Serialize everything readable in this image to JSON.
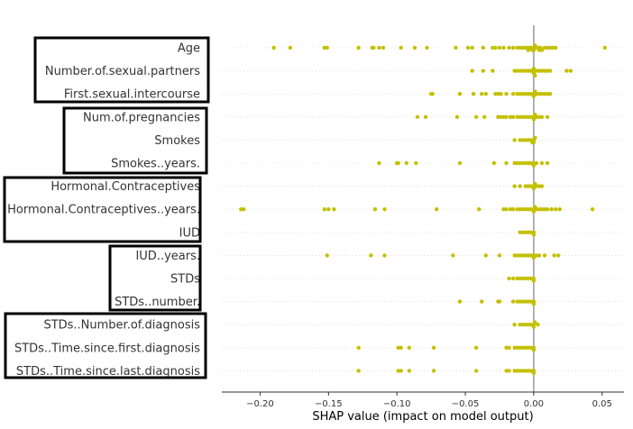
{
  "chart_data": {
    "type": "scatter",
    "subtype": "shap-beeswarm",
    "xlabel": "SHAP value (impact on model output)",
    "xlim": [
      -0.228,
      0.066
    ],
    "xticks": [
      -0.2,
      -0.15,
      -0.1,
      -0.05,
      0.0,
      0.05
    ],
    "xtick_labels": [
      "−0.20",
      "−0.15",
      "−0.10",
      "−0.05",
      "0.00",
      "0.05"
    ],
    "point_color": "#c4c000",
    "zero_line_color": "#999999",
    "features": [
      {
        "name": "Age",
        "values": [
          -0.19,
          -0.178,
          -0.153,
          -0.151,
          -0.128,
          -0.118,
          -0.117,
          -0.113,
          -0.11,
          -0.097,
          -0.087,
          -0.078,
          -0.057,
          -0.048,
          -0.045,
          -0.037,
          -0.03,
          -0.028,
          -0.025,
          -0.022,
          -0.018,
          -0.015,
          -0.012,
          -0.01,
          -0.008,
          -0.006,
          -0.005,
          -0.004,
          -0.003,
          -0.002,
          -0.001,
          0.0,
          0.0,
          0.001,
          0.002,
          0.003,
          0.004,
          0.005,
          0.006,
          0.008,
          0.01,
          0.012,
          0.014,
          0.016,
          0.052
        ]
      },
      {
        "name": "Number.of.sexual.partners",
        "values": [
          -0.045,
          -0.037,
          -0.03,
          -0.014,
          -0.012,
          -0.01,
          -0.008,
          -0.006,
          -0.004,
          -0.002,
          0.0,
          0.0,
          0.0,
          0.001,
          0.002,
          0.004,
          0.006,
          0.008,
          0.01,
          0.012,
          0.024,
          0.027
        ]
      },
      {
        "name": "First.sexual.intercourse",
        "values": [
          -0.075,
          -0.074,
          -0.054,
          -0.044,
          -0.038,
          -0.035,
          -0.028,
          -0.026,
          -0.024,
          -0.02,
          -0.015,
          -0.012,
          -0.01,
          -0.008,
          -0.006,
          -0.004,
          -0.002,
          0.0,
          0.0,
          0.001,
          0.002,
          0.004,
          0.006,
          0.008,
          0.01,
          0.012
        ]
      },
      {
        "name": "Num.of.pregnancies",
        "values": [
          -0.085,
          -0.079,
          -0.056,
          -0.042,
          -0.036,
          -0.026,
          -0.024,
          -0.022,
          -0.02,
          -0.017,
          -0.015,
          -0.012,
          -0.01,
          -0.008,
          -0.006,
          -0.004,
          -0.002,
          0.0,
          0.0,
          0.001,
          0.002,
          0.004,
          0.006,
          0.01
        ]
      },
      {
        "name": "Smokes",
        "values": [
          -0.014,
          -0.01,
          -0.008,
          -0.006,
          -0.004,
          -0.002,
          -0.001,
          0.0,
          0.0,
          0.001
        ]
      },
      {
        "name": "Smokes..years.",
        "values": [
          -0.113,
          -0.1,
          -0.099,
          -0.093,
          -0.086,
          -0.054,
          -0.029,
          -0.02,
          -0.014,
          -0.012,
          -0.01,
          -0.008,
          -0.006,
          -0.004,
          -0.002,
          0.0,
          0.0,
          0.002,
          0.006,
          0.01
        ]
      },
      {
        "name": "Hormonal.Contraceptives",
        "values": [
          -0.014,
          -0.01,
          -0.006,
          -0.004,
          -0.002,
          0.0,
          0.0,
          0.001,
          0.002,
          0.004,
          0.006
        ]
      },
      {
        "name": "Hormonal.Contraceptives..years.",
        "values": [
          -0.214,
          -0.212,
          -0.153,
          -0.15,
          -0.146,
          -0.116,
          -0.109,
          -0.071,
          -0.04,
          -0.022,
          -0.02,
          -0.017,
          -0.015,
          -0.012,
          -0.01,
          -0.008,
          -0.006,
          -0.004,
          -0.002,
          0.0,
          0.0,
          0.001,
          0.002,
          0.004,
          0.006,
          0.008,
          0.01,
          0.013,
          0.016,
          0.019,
          0.043
        ]
      },
      {
        "name": "IUD",
        "values": [
          -0.01,
          -0.008,
          -0.006,
          -0.004,
          -0.002,
          0.0,
          0.0
        ]
      },
      {
        "name": "IUD..years.",
        "values": [
          -0.151,
          -0.119,
          -0.109,
          -0.059,
          -0.035,
          -0.025,
          -0.014,
          -0.012,
          -0.01,
          -0.008,
          -0.006,
          -0.004,
          -0.002,
          0.0,
          0.0,
          0.002,
          0.004,
          0.008,
          0.015,
          0.018
        ]
      },
      {
        "name": "STDs",
        "values": [
          -0.018,
          -0.015,
          -0.012,
          -0.01,
          -0.008,
          -0.006,
          -0.004,
          -0.002,
          0.0,
          0.0
        ]
      },
      {
        "name": "STDs..number.",
        "values": [
          -0.054,
          -0.038,
          -0.026,
          -0.025,
          -0.015,
          -0.012,
          -0.01,
          -0.008,
          -0.006,
          -0.004,
          -0.002,
          0.0,
          0.0
        ]
      },
      {
        "name": "STDs..Number.of.diagnosis",
        "values": [
          -0.014,
          -0.01,
          -0.008,
          -0.006,
          -0.004,
          -0.002,
          0.0,
          0.0,
          0.001,
          0.003
        ]
      },
      {
        "name": "STDs..Time.since.first.diagnosis",
        "values": [
          -0.128,
          -0.099,
          -0.097,
          -0.091,
          -0.073,
          -0.042,
          -0.02,
          -0.018,
          -0.014,
          -0.012,
          -0.01,
          -0.008,
          -0.006,
          -0.004,
          -0.002,
          0.0,
          0.0
        ]
      },
      {
        "name": "STDs..Time.since.last.diagnosis",
        "values": [
          -0.128,
          -0.099,
          -0.097,
          -0.091,
          -0.073,
          -0.042,
          -0.02,
          -0.018,
          -0.014,
          -0.012,
          -0.01,
          -0.008,
          -0.006,
          -0.004,
          -0.002,
          0.0,
          0.0
        ]
      }
    ],
    "feature_groups": [
      [
        "Age",
        "Number.of.sexual.partners",
        "First.sexual.intercourse"
      ],
      [
        "Num.of.pregnancies",
        "Smokes",
        "Smokes..years."
      ],
      [
        "Hormonal.Contraceptives",
        "Hormonal.Contraceptives..years.",
        "IUD"
      ],
      [
        "IUD..years.",
        "STDs",
        "STDs..number."
      ],
      [
        "STDs..Number.of.diagnosis",
        "STDs..Time.since.first.diagnosis",
        "STDs..Time.since.last.diagnosis"
      ]
    ]
  }
}
